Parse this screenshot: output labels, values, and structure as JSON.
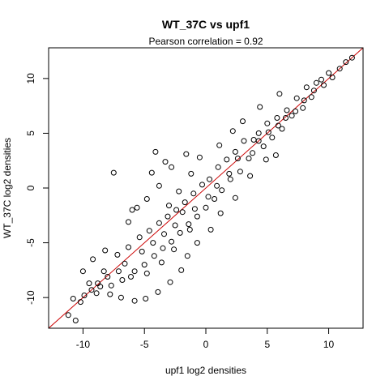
{
  "chart_data": {
    "type": "scatter",
    "title": "WT_37C vs upf1",
    "subtitle": "Pearson correlation =  0.92",
    "xlabel": "upf1 log2 densities",
    "ylabel": "WT_37C log2 densities",
    "xlim": [
      -12.8,
      12.8
    ],
    "ylim": [
      -12.8,
      12.8
    ],
    "xticks": [
      -10,
      -5,
      0,
      5,
      10
    ],
    "yticks": [
      -10,
      -5,
      0,
      5,
      10
    ],
    "xtick_labels": [
      "-10",
      "-5",
      "0",
      "5",
      "10"
    ],
    "ytick_labels": [
      "-10",
      "-5",
      "0",
      "5",
      "10"
    ],
    "grid": false,
    "point_color": "#000000",
    "fit_line": {
      "slope": 1,
      "intercept": 0,
      "color": "#cc0000"
    },
    "points": [
      [
        11.9,
        11.9
      ],
      [
        11.4,
        11.5
      ],
      [
        10.9,
        10.9
      ],
      [
        10.3,
        10.1
      ],
      [
        10.0,
        10.5
      ],
      [
        9.6,
        9.4
      ],
      [
        9.0,
        9.6
      ],
      [
        8.6,
        8.3
      ],
      [
        8.2,
        9.2
      ],
      [
        7.9,
        7.3
      ],
      [
        7.4,
        8.2
      ],
      [
        7.0,
        6.6
      ],
      [
        6.6,
        7.1
      ],
      [
        6.2,
        5.4
      ],
      [
        5.8,
        6.4
      ],
      [
        5.4,
        4.6
      ],
      [
        5.0,
        5.9
      ],
      [
        4.7,
        3.8
      ],
      [
        4.3,
        5.0
      ],
      [
        3.9,
        4.4
      ],
      [
        3.5,
        2.7
      ],
      [
        3.1,
        4.3
      ],
      [
        2.8,
        1.5
      ],
      [
        2.4,
        3.3
      ],
      [
        2.0,
        0.8
      ],
      [
        1.7,
        2.6
      ],
      [
        1.3,
        -0.2
      ],
      [
        1.0,
        1.9
      ],
      [
        0.7,
        -1.0
      ],
      [
        0.3,
        0.8
      ],
      [
        0.0,
        -1.8
      ],
      [
        -0.3,
        0.3
      ],
      [
        -0.7,
        -2.6
      ],
      [
        -1.0,
        -0.5
      ],
      [
        -1.4,
        -3.3
      ],
      [
        -1.7,
        -1.3
      ],
      [
        -2.1,
        -4.1
      ],
      [
        -2.4,
        -2.0
      ],
      [
        -2.8,
        -4.9
      ],
      [
        -3.1,
        -2.6
      ],
      [
        -3.5,
        -5.5
      ],
      [
        -3.8,
        -3.2
      ],
      [
        -4.2,
        -6.2
      ],
      [
        -4.6,
        -3.9
      ],
      [
        -5.0,
        -7.0
      ],
      [
        -5.4,
        -4.5
      ],
      [
        -5.8,
        -7.6
      ],
      [
        -6.3,
        -5.4
      ],
      [
        -6.8,
        -8.4
      ],
      [
        -7.2,
        -6.1
      ],
      [
        -7.7,
        -8.9
      ],
      [
        -8.3,
        -7.6
      ],
      [
        -8.9,
        -9.6
      ],
      [
        -9.5,
        -8.7
      ],
      [
        -10.2,
        -10.4
      ],
      [
        -10.8,
        -10.1
      ],
      [
        -11.2,
        -11.6
      ],
      [
        -10.6,
        -12.1
      ],
      [
        -7.5,
        1.4
      ],
      [
        -4.1,
        3.3
      ],
      [
        -4.4,
        1.4
      ],
      [
        -3.3,
        2.4
      ],
      [
        -2.8,
        1.9
      ],
      [
        -1.6,
        3.1
      ],
      [
        -0.5,
        2.8
      ],
      [
        1.1,
        3.9
      ],
      [
        2.2,
        5.2
      ],
      [
        3.0,
        6.1
      ],
      [
        4.4,
        7.4
      ],
      [
        6.0,
        8.6
      ],
      [
        5.7,
        3.0
      ],
      [
        4.9,
        2.6
      ],
      [
        3.6,
        1.1
      ],
      [
        2.4,
        -0.9
      ],
      [
        1.2,
        -2.3
      ],
      [
        0.4,
        -3.8
      ],
      [
        -0.7,
        -5.0
      ],
      [
        -1.5,
        -6.2
      ],
      [
        -2.0,
        -7.5
      ],
      [
        -2.9,
        -8.6
      ],
      [
        -3.9,
        -9.5
      ],
      [
        -4.9,
        -10.1
      ],
      [
        -5.8,
        -10.3
      ],
      [
        -6.9,
        -10.0
      ],
      [
        -7.8,
        -9.7
      ],
      [
        -8.6,
        -9.0
      ],
      [
        -5.6,
        -1.8
      ],
      [
        -6.3,
        -3.1
      ],
      [
        -6.0,
        -2.0
      ],
      [
        -8.2,
        -5.7
      ],
      [
        -9.2,
        -6.5
      ],
      [
        -10.0,
        -7.6
      ],
      [
        -4.8,
        -1.0
      ],
      [
        -3.8,
        0.2
      ],
      [
        -2.2,
        -0.3
      ],
      [
        -1.2,
        1.3
      ],
      [
        0.9,
        0.2
      ],
      [
        1.9,
        1.3
      ],
      [
        2.6,
        2.7
      ],
      [
        3.8,
        3.2
      ],
      [
        4.3,
        4.3
      ],
      [
        5.1,
        5.1
      ],
      [
        5.9,
        5.7
      ],
      [
        6.5,
        6.4
      ],
      [
        7.3,
        7.0
      ],
      [
        8.0,
        8.0
      ],
      [
        8.8,
        8.9
      ],
      [
        9.4,
        9.9
      ],
      [
        -2.5,
        -3.4
      ],
      [
        -1.9,
        -2.2
      ],
      [
        -3.4,
        -4.2
      ],
      [
        -4.3,
        -5.0
      ],
      [
        -3.0,
        -1.6
      ],
      [
        -0.9,
        -1.9
      ],
      [
        0.2,
        -0.8
      ],
      [
        -1.3,
        -3.8
      ],
      [
        -2.6,
        -5.6
      ],
      [
        -3.6,
        -6.8
      ],
      [
        -4.8,
        -7.8
      ],
      [
        -6.1,
        -8.1
      ],
      [
        -5.2,
        -5.8
      ],
      [
        -6.6,
        -6.9
      ],
      [
        -7.1,
        -7.6
      ],
      [
        -8.0,
        -8.1
      ],
      [
        -8.8,
        -8.7
      ],
      [
        -9.3,
        -9.3
      ],
      [
        -9.9,
        -9.8
      ]
    ]
  }
}
